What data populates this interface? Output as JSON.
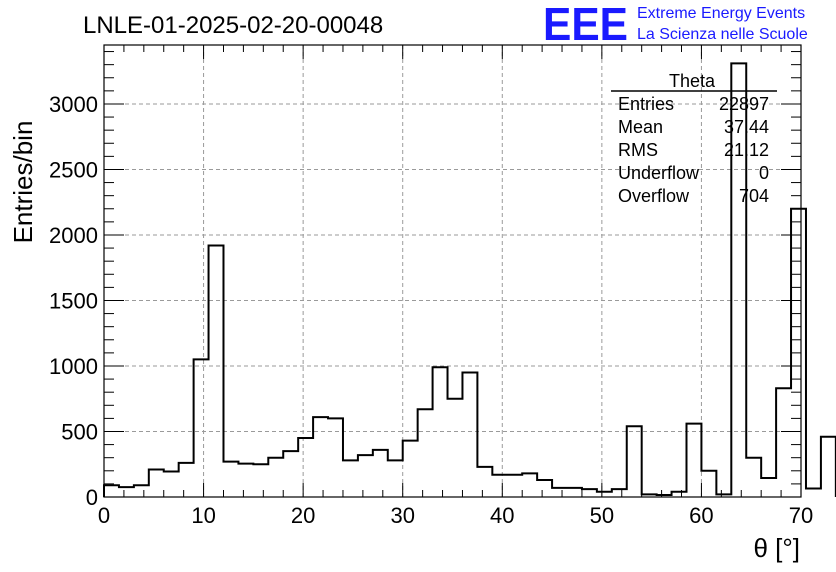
{
  "chart_data": {
    "type": "bar",
    "title": "LNLE-01-2025-02-20-00048",
    "xlabel": "θ [°]",
    "ylabel": "Entries/bin",
    "xlim": [
      0,
      70
    ],
    "ylim": [
      0,
      3450
    ],
    "x_ticks": [
      "0",
      "10",
      "20",
      "30",
      "40",
      "50",
      "60",
      "70"
    ],
    "y_ticks": [
      "0",
      "500",
      "1000",
      "1500",
      "2000",
      "2500",
      "3000"
    ],
    "grid": true,
    "bin_width": 1.5,
    "x_start": 0,
    "values": [
      90,
      75,
      90,
      210,
      195,
      260,
      1050,
      1920,
      270,
      255,
      250,
      300,
      350,
      450,
      610,
      600,
      280,
      320,
      360,
      280,
      430,
      670,
      990,
      750,
      950,
      230,
      170,
      170,
      180,
      130,
      70,
      70,
      60,
      40,
      60,
      540,
      20,
      15,
      40,
      560,
      200,
      20,
      3310,
      300,
      145,
      830,
      2200,
      65,
      460
    ],
    "stats": {
      "name": "Theta",
      "entries_label": "Entries",
      "entries": "22897",
      "mean_label": "Mean",
      "mean": "37.44",
      "rms_label": "RMS",
      "rms": "21.12",
      "underflow_label": "Underflow",
      "underflow": "0",
      "overflow_label": "Overflow",
      "overflow": "704"
    },
    "logo": {
      "text": "EEE",
      "line1": "Extreme Energy Events",
      "line2": "La Scienza nelle Scuole",
      "color": "#1a1aff"
    }
  }
}
